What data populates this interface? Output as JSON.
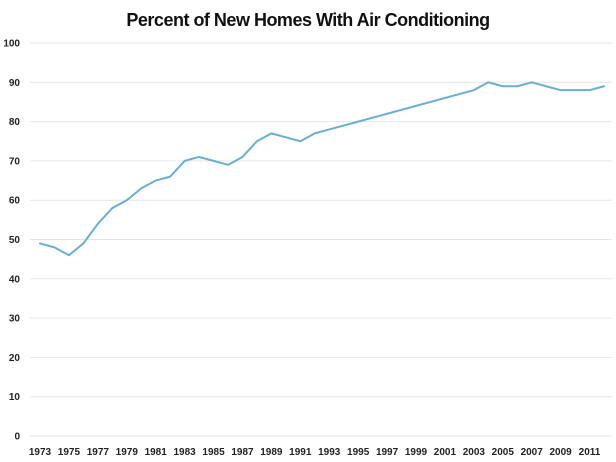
{
  "chart_data": {
    "type": "line",
    "title": "Percent of New Homes With Air Conditioning",
    "xlabel": "",
    "ylabel": "",
    "ylim": [
      0,
      100
    ],
    "xlim": [
      1973,
      2012
    ],
    "y_ticks": [
      0,
      10,
      20,
      30,
      40,
      50,
      60,
      70,
      80,
      90,
      100
    ],
    "x_ticks": [
      1973,
      1975,
      1977,
      1979,
      1981,
      1983,
      1985,
      1987,
      1989,
      1991,
      1993,
      1995,
      1997,
      1999,
      2001,
      2003,
      2005,
      2007,
      2009,
      2011
    ],
    "grid": true,
    "legend": "none",
    "colors": {
      "line": "#6aaed6",
      "grid": "#e6e6e6"
    },
    "series": [
      {
        "x": [
          1973,
          1974,
          1975,
          1976,
          1977,
          1978,
          1979,
          1980,
          1981,
          1982,
          1983,
          1984,
          1985,
          1986,
          1987,
          1988,
          1989,
          1990,
          1991,
          1992,
          1993,
          1994,
          1995,
          1996,
          1997,
          1998,
          1999,
          2000,
          2001,
          2002,
          2003,
          2004,
          2005,
          2006,
          2007,
          2008,
          2009,
          2010,
          2011,
          2012
        ],
        "values": [
          49,
          48,
          46,
          49,
          54,
          58,
          60,
          63,
          65,
          66,
          70,
          71,
          70,
          69,
          71,
          75,
          77,
          76,
          75,
          77,
          78,
          79,
          80,
          81,
          82,
          83,
          84,
          85,
          86,
          87,
          88,
          90,
          89,
          89,
          90,
          89,
          88,
          88,
          88,
          89
        ]
      }
    ]
  }
}
